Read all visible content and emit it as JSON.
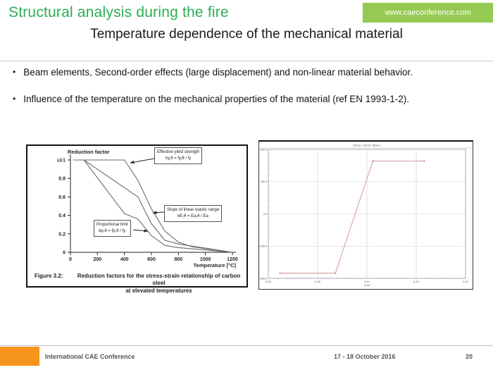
{
  "header": {
    "title": "Structural analysis during the fire",
    "badge": "www.caeconference.com",
    "subtitle": "Temperature dependence of the mechanical material"
  },
  "bullets": [
    "Beam elements, Second-order effects (large displacement) and non-linear material behavior.",
    "Influence of the temperature on the mechanical properties of the material (ref EN 1993-1-2)."
  ],
  "colors": {
    "title_green": "#2eac55",
    "badge_green": "#95ca52",
    "footer_orange": "#f7941d",
    "left_curve_gray": "#6a6a6a",
    "right_curve_red": "#c97e7e"
  },
  "chart_data": [
    {
      "type": "line",
      "axis_title": "Reduction factor",
      "y_symbol": "kθ",
      "xlabel": "Temperature [°C]",
      "x_ticks": [
        "0",
        "200",
        "400",
        "600",
        "800",
        "1000",
        "1200"
      ],
      "y_ticks": [
        "0",
        "0.2",
        "0.4",
        "0.6",
        "0.8",
        "1"
      ],
      "xlim": [
        0,
        1200
      ],
      "ylim": [
        0,
        1
      ],
      "x": [
        20,
        100,
        200,
        300,
        400,
        500,
        600,
        700,
        800,
        900,
        1000,
        1100,
        1200
      ],
      "series": [
        {
          "name": "Effective yield strength",
          "label": "ky,θ = fy,θ / fy",
          "values": [
            1,
            1,
            1,
            1,
            1,
            0.78,
            0.47,
            0.23,
            0.11,
            0.06,
            0.04,
            0.02,
            0
          ]
        },
        {
          "name": "Slope of linear elastic range",
          "label": "kE,θ = Ea,θ / Ea",
          "values": [
            1,
            1,
            0.9,
            0.8,
            0.7,
            0.6,
            0.31,
            0.13,
            0.09,
            0.0675,
            0.045,
            0.0225,
            0
          ]
        },
        {
          "name": "Proportional limit",
          "label": "kp,θ = fp,θ / fy",
          "values": [
            1,
            1,
            0.807,
            0.613,
            0.42,
            0.36,
            0.18,
            0.075,
            0.05,
            0.0375,
            0.025,
            0.0125,
            0
          ]
        }
      ],
      "caption_label": "Figure 3.2:",
      "caption_line1": "Reduction factors for the stress-strain relationship of carbon steel",
      "caption_line2": "at elevated temperatures"
    },
    {
      "type": "line",
      "title": "Stress v Strain Table 1",
      "xlabel": "Time",
      "x_ticks": [
        "0.00",
        "0.05",
        "0.10",
        "0.15",
        "0.20"
      ],
      "y_ticks": [
        "-500.0",
        "-250.0",
        "0.0",
        "250.0",
        "500.0"
      ],
      "xlim": [
        0,
        0.2
      ],
      "ylim": [
        -500,
        500
      ],
      "series": [
        {
          "name": "curve",
          "x": [
            0.012,
            0.068,
            0.106,
            0.158
          ],
          "values": [
            -460,
            -460,
            410,
            410
          ]
        }
      ]
    }
  ],
  "footer": {
    "conference": "International CAE Conference",
    "date": "17 - 18 October 2016",
    "page": "20"
  }
}
